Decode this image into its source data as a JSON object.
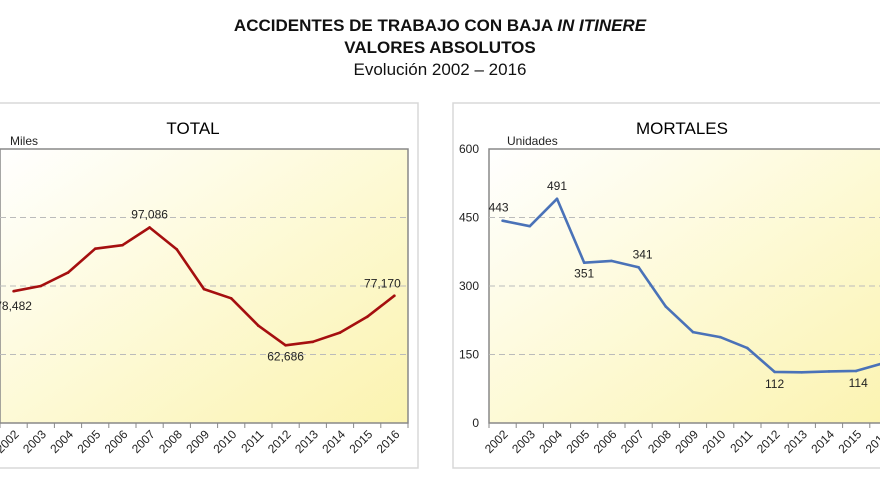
{
  "header": {
    "title_main": "ACCIDENTES DE TRABAJO CON BAJA ",
    "title_italic": "IN ITINERE",
    "subtitle": "VALORES ABSOLUTOS",
    "period": "Evolución 2002 – 2016"
  },
  "chart_data": [
    {
      "type": "line",
      "title": "TOTAL",
      "ylabel": "Miles",
      "xlabel": "",
      "categories": [
        "2002",
        "2003",
        "2004",
        "2005",
        "2006",
        "2007",
        "2008",
        "2009",
        "2010",
        "2011",
        "2012",
        "2013",
        "2014",
        "2015",
        "2016"
      ],
      "series": [
        {
          "name": "Total",
          "color": "#a50f0f",
          "values": [
            78.482,
            80.0,
            83.9,
            90.9,
            91.9,
            97.086,
            90.7,
            79.1,
            76.4,
            68.4,
            62.686,
            63.7,
            66.4,
            71.0,
            77.17
          ]
        }
      ],
      "ylim": [
        40,
        120
      ],
      "yticks": [
        40,
        60,
        80,
        100,
        120
      ],
      "ytick_labels_visible": false,
      "grid": "horizontal-dashed",
      "data_labels": [
        {
          "index": 0,
          "text": "78,482"
        },
        {
          "index": 5,
          "text": "97,086"
        },
        {
          "index": 10,
          "text": "62,686"
        },
        {
          "index": 14,
          "text": "77,170"
        }
      ]
    },
    {
      "type": "line",
      "title": "MORTALES",
      "ylabel": "Unidades",
      "xlabel": "",
      "categories": [
        "2002",
        "2003",
        "2004",
        "2005",
        "2006",
        "2007",
        "2008",
        "2009",
        "2010",
        "2011",
        "2012",
        "2013",
        "2014",
        "2015",
        "2016"
      ],
      "series": [
        {
          "name": "Mortales",
          "color": "#4a72b8",
          "values": [
            443,
            431,
            491,
            351,
            355,
            341,
            255,
            199,
            188,
            164,
            112,
            111,
            113,
            114,
            131
          ]
        }
      ],
      "ylim": [
        0,
        600
      ],
      "yticks": [
        0,
        150,
        300,
        450,
        600
      ],
      "ytick_labels": [
        "0",
        "150",
        "300",
        "450",
        "600"
      ],
      "grid": "horizontal-dashed",
      "data_labels": [
        {
          "index": 0,
          "text": "443"
        },
        {
          "index": 2,
          "text": "491"
        },
        {
          "index": 3,
          "text": "351"
        },
        {
          "index": 5,
          "text": "341"
        },
        {
          "index": 10,
          "text": "112"
        },
        {
          "index": 13,
          "text": "114"
        },
        {
          "index": 14,
          "text": "131"
        }
      ]
    }
  ]
}
